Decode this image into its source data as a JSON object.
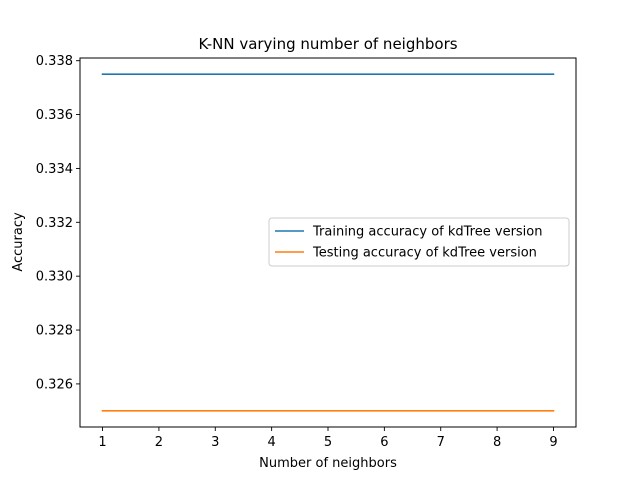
{
  "chart_data": {
    "type": "line",
    "title": "K-NN varying number of neighbors",
    "xlabel": "Number of neighbors",
    "ylabel": "Accuracy",
    "x": [
      1,
      2,
      3,
      4,
      5,
      6,
      7,
      8,
      9
    ],
    "xlim": [
      0.6,
      9.4
    ],
    "ylim": [
      0.3244,
      0.3381
    ],
    "xticks": [
      "1",
      "2",
      "3",
      "4",
      "5",
      "6",
      "7",
      "8",
      "9"
    ],
    "yticks": [
      "0.326",
      "0.328",
      "0.330",
      "0.332",
      "0.334",
      "0.336",
      "0.338"
    ],
    "grid": false,
    "legend_position": "center-right",
    "series": [
      {
        "name": "Training accuracy of kdTree version",
        "color": "#1f77b4",
        "values": [
          0.3375,
          0.3375,
          0.3375,
          0.3375,
          0.3375,
          0.3375,
          0.3375,
          0.3375,
          0.3375
        ]
      },
      {
        "name": "Testing accuracy of kdTree version",
        "color": "#ff7f0e",
        "values": [
          0.325,
          0.325,
          0.325,
          0.325,
          0.325,
          0.325,
          0.325,
          0.325,
          0.325
        ]
      }
    ]
  }
}
